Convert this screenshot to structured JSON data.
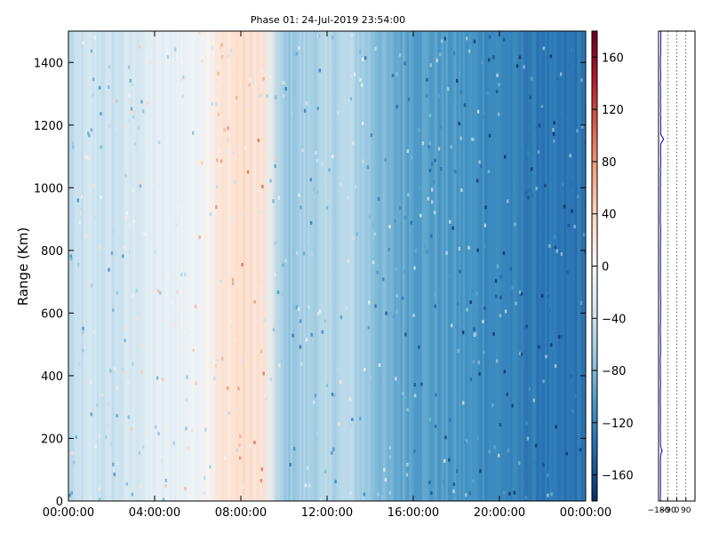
{
  "chart_data": [
    {
      "type": "heatmap",
      "title": "Phase 01: 24-Jul-2019 23:54:00",
      "ylabel": "Range (Km)",
      "xlabel": "",
      "x_ticks": [
        "00:00:00",
        "04:00:00",
        "08:00:00",
        "12:00:00",
        "16:00:00",
        "20:00:00",
        "00:00:00"
      ],
      "x_range_hours": [
        0,
        24
      ],
      "y_ticks": [
        0,
        200,
        400,
        600,
        800,
        1000,
        1200,
        1400
      ],
      "ylim": [
        0,
        1500
      ],
      "colormap": "RdBu_r",
      "colorbar": {
        "range": [
          -180,
          180
        ],
        "ticks": [
          -160,
          -120,
          -80,
          -40,
          0,
          40,
          80,
          120,
          160
        ],
        "low_color": "#053061",
        "mid_color": "#f7f7f7",
        "high_color": "#67001f"
      },
      "hourly_mean_phase": [
        {
          "hour": 0,
          "phase": -50
        },
        {
          "hour": 1,
          "phase": -35
        },
        {
          "hour": 2,
          "phase": -40
        },
        {
          "hour": 3,
          "phase": -30
        },
        {
          "hour": 4,
          "phase": -20
        },
        {
          "hour": 5,
          "phase": -15
        },
        {
          "hour": 6,
          "phase": -5
        },
        {
          "hour": 7,
          "phase": 20
        },
        {
          "hour": 8,
          "phase": 30
        },
        {
          "hour": 9,
          "phase": 25
        },
        {
          "hour": 10,
          "phase": -70
        },
        {
          "hour": 11,
          "phase": -60
        },
        {
          "hour": 12,
          "phase": -55
        },
        {
          "hour": 13,
          "phase": -50
        },
        {
          "hour": 14,
          "phase": -70
        },
        {
          "hour": 15,
          "phase": -90
        },
        {
          "hour": 16,
          "phase": -95
        },
        {
          "hour": 17,
          "phase": -100
        },
        {
          "hour": 18,
          "phase": -105
        },
        {
          "hour": 19,
          "phase": -110
        },
        {
          "hour": 20,
          "phase": -115
        },
        {
          "hour": 21,
          "phase": -125
        },
        {
          "hour": 22,
          "phase": -130
        },
        {
          "hour": 23,
          "phase": -135
        },
        {
          "hour": 24,
          "phase": -130
        }
      ]
    },
    {
      "type": "line",
      "title": "",
      "xlabel": "",
      "ylabel": "",
      "x_ticks": [
        -180,
        -90,
        0,
        90
      ],
      "x_tick_labels": [
        "−180",
        "−90",
        "0",
        "90"
      ],
      "xlim": [
        -180,
        180
      ],
      "ylim": [
        0,
        1500
      ],
      "grid_x": "dotted",
      "line_color": "#0000cc",
      "series": [
        {
          "points": [
            {
              "range": 0,
              "phase": -160
            },
            {
              "range": 100,
              "phase": -162
            },
            {
              "range": 150,
              "phase": -158
            },
            {
              "range": 160,
              "phase": -145
            },
            {
              "range": 175,
              "phase": -160
            },
            {
              "range": 300,
              "phase": -162
            },
            {
              "range": 600,
              "phase": -160
            },
            {
              "range": 1000,
              "phase": -161
            },
            {
              "range": 1140,
              "phase": -158
            },
            {
              "range": 1155,
              "phase": -130
            },
            {
              "range": 1170,
              "phase": -158
            },
            {
              "range": 1300,
              "phase": -161
            },
            {
              "range": 1500,
              "phase": -158
            }
          ]
        }
      ]
    }
  ]
}
